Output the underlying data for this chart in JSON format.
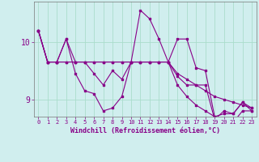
{
  "title": "",
  "xlabel": "Windchill (Refroidissement éolien,°C)",
  "ylabel": "",
  "background_color": "#d0eeee",
  "line_color": "#880088",
  "grid_color": "#aaddcc",
  "ylim": [
    8.7,
    10.7
  ],
  "xlim": [
    -0.5,
    23.5
  ],
  "yticks": [
    9,
    10
  ],
  "xticks": [
    0,
    1,
    2,
    3,
    4,
    5,
    6,
    7,
    8,
    9,
    10,
    11,
    12,
    13,
    14,
    15,
    16,
    17,
    18,
    19,
    20,
    21,
    22,
    23
  ],
  "series": [
    [
      10.2,
      9.65,
      9.65,
      9.65,
      9.65,
      9.65,
      9.65,
      9.65,
      9.65,
      9.65,
      9.65,
      9.65,
      9.65,
      9.65,
      9.65,
      9.45,
      9.35,
      9.25,
      9.15,
      9.05,
      9.0,
      8.95,
      8.9,
      8.85
    ],
    [
      10.2,
      9.65,
      9.65,
      10.05,
      9.65,
      9.65,
      9.45,
      9.25,
      9.5,
      9.35,
      9.65,
      10.55,
      10.4,
      10.05,
      9.65,
      10.05,
      10.05,
      9.55,
      9.5,
      8.7,
      8.75,
      8.75,
      8.95,
      8.85
    ],
    [
      10.2,
      9.65,
      9.65,
      10.05,
      9.45,
      9.15,
      9.1,
      8.8,
      8.85,
      9.05,
      9.65,
      9.65,
      9.65,
      9.65,
      9.65,
      9.4,
      9.25,
      9.25,
      9.25,
      8.65,
      8.8,
      8.75,
      8.95,
      8.8
    ],
    [
      10.2,
      9.65,
      9.65,
      9.65,
      9.65,
      9.65,
      9.65,
      9.65,
      9.65,
      9.65,
      9.65,
      9.65,
      9.65,
      9.65,
      9.65,
      9.25,
      9.05,
      8.9,
      8.8,
      8.7,
      8.65,
      8.6,
      8.8,
      8.8
    ]
  ]
}
